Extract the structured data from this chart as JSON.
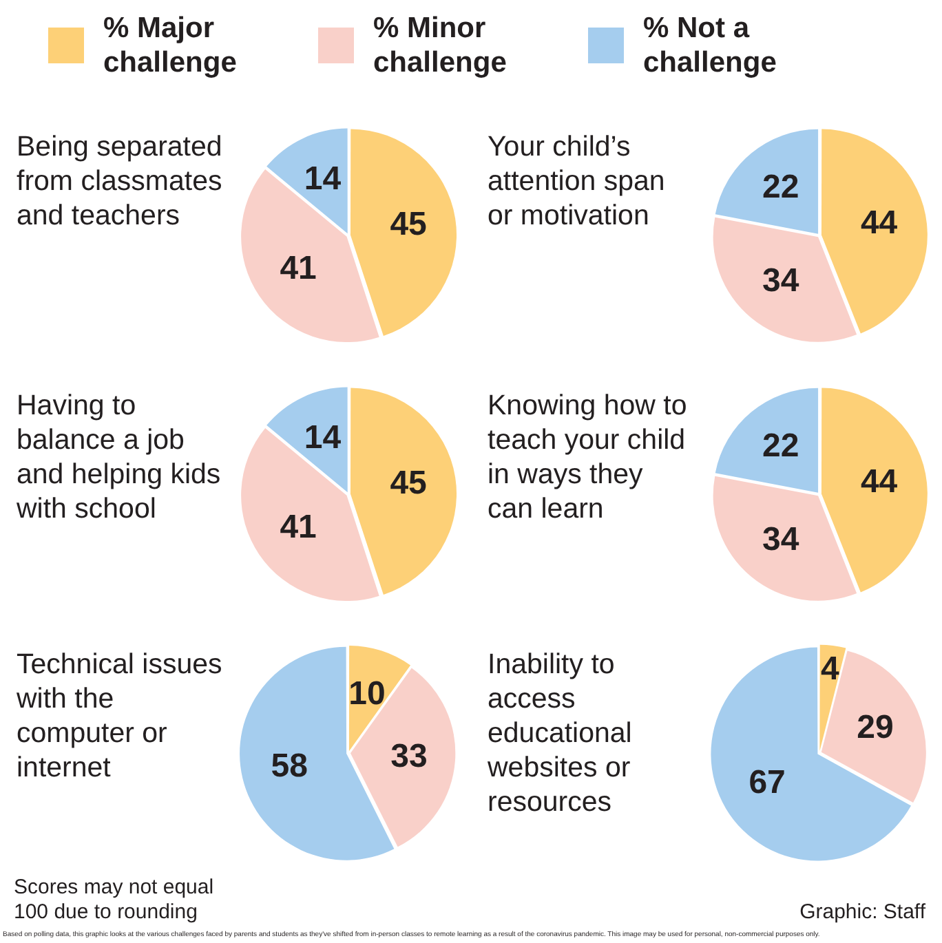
{
  "chart_data": [
    {
      "type": "pie",
      "title": "Being separated from classmates and teachers",
      "categories": [
        "% Major challenge",
        "% Minor challenge",
        "% Not a challenge"
      ],
      "values": [
        45,
        41,
        14
      ],
      "colors": [
        "#fdd077",
        "#f9d0c9",
        "#a5cdee"
      ],
      "data_labels": true,
      "legend": "top"
    },
    {
      "type": "pie",
      "title": "Your child’s attention span or motivation",
      "categories": [
        null,
        null,
        null
      ],
      "values": [
        44,
        34,
        22
      ],
      "colors": [
        "#fdd077",
        "#f9d0c9",
        "#a5cdee"
      ],
      "data_labels": true
    },
    {
      "type": "pie",
      "title": "Having to balance a job and helping kids with school",
      "categories": [
        null,
        null,
        null
      ],
      "values": [
        45,
        41,
        14
      ],
      "colors": [
        "#fdd077",
        "#f9d0c9",
        "#a5cdee"
      ],
      "data_labels": true
    },
    {
      "type": "pie",
      "title": "Knowing how to teach your child in ways they can learn",
      "categories": [
        null,
        null,
        null
      ],
      "values": [
        44,
        34,
        22
      ],
      "colors": [
        "#fdd077",
        "#f9d0c9",
        "#a5cdee"
      ],
      "data_labels": true
    },
    {
      "type": "pie",
      "title": "Technical issues with the computer or internet",
      "categories": [
        null,
        null,
        null
      ],
      "values": [
        10,
        33,
        58
      ],
      "colors": [
        "#fdd077",
        "#f9d0c9",
        "#a5cdee"
      ],
      "data_labels": true
    },
    {
      "type": "pie",
      "title": "Inability to access educational websites or resources",
      "categories": [
        null,
        null,
        null
      ],
      "values": [
        4,
        29,
        67
      ],
      "colors": [
        "#fdd077",
        "#f9d0c9",
        "#a5cdee"
      ],
      "data_labels": true
    },
    {
      "type": "other",
      "annotations": [
        "Scores may not equal 100 due to rounding",
        "Graphic: Staff",
        "Based on polling data, this graphic looks at the various challenges faced by parents and students as they've shifted from in-person classes to remote learning as a result of the coronavirus pandemic. This image may be used for personal, non-commercial purposes only."
      ]
    }
  ]
}
